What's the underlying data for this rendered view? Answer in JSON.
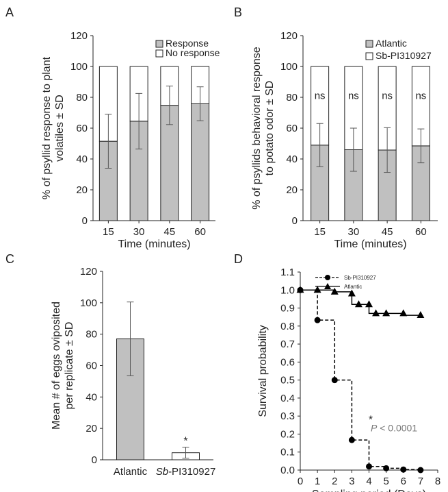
{
  "panel_labels": {
    "A": "A",
    "B": "B",
    "C": "C",
    "D": "D"
  },
  "colors": {
    "bar_fill": "#c0c0c0",
    "top_fill": "#ffffff",
    "axis": "#222222",
    "pvalue": "#777777"
  },
  "chart_data": [
    {
      "type": "bar",
      "stacked": true,
      "panel": "A",
      "categories": [
        "15",
        "30",
        "45",
        "60"
      ],
      "series": [
        {
          "name": "Response",
          "values": [
            51.5,
            64.5,
            74.8,
            75.8
          ],
          "sd": [
            17.5,
            18.0,
            12.5,
            11.0
          ],
          "color": "#c0c0c0"
        },
        {
          "name": "No response",
          "values": [
            48.5,
            35.5,
            25.2,
            24.2
          ],
          "color": "#ffffff"
        }
      ],
      "xlabel": "Time (minutes)",
      "ylabel": [
        "% of psyllid response to plant",
        "volatiles ± SD"
      ],
      "yticks": [
        "0",
        "20",
        "40",
        "60",
        "80",
        "100",
        "120"
      ],
      "ylim": [
        0,
        120
      ]
    },
    {
      "type": "bar",
      "stacked": true,
      "panel": "B",
      "categories": [
        "15",
        "30",
        "45",
        "60"
      ],
      "series": [
        {
          "name": "Atlantic",
          "values": [
            49.0,
            46.0,
            45.8,
            48.5
          ],
          "sd": [
            14.0,
            14.0,
            14.5,
            11.0
          ],
          "color": "#c0c0c0"
        },
        {
          "name": "Sb-PI310927",
          "values": [
            51.0,
            54.0,
            54.2,
            51.5
          ],
          "color": "#ffffff"
        }
      ],
      "annotations": [
        "ns",
        "ns",
        "ns",
        "ns"
      ],
      "xlabel": "Time (minutes)",
      "ylabel": [
        "% of psyllids behavioral response",
        "to potato odor ± SD"
      ],
      "yticks": [
        "0",
        "20",
        "40",
        "60",
        "80",
        "100",
        "120"
      ],
      "ylim": [
        0,
        120
      ]
    },
    {
      "type": "bar",
      "panel": "C",
      "categories": [
        "Atlantic",
        "Sb-PI310927"
      ],
      "category_parts": [
        {
          "italic": "",
          "rest": "Atlantic"
        },
        {
          "italic": "Sb",
          "rest": "-PI310927"
        }
      ],
      "values": [
        77.0,
        4.5
      ],
      "sd": [
        23.5,
        3.5
      ],
      "fills": [
        "#c0c0c0",
        "#ffffff"
      ],
      "significance": "*",
      "xlabel": "",
      "ylabel": [
        "Mean # of eggs oviposited",
        "per replicate ± SD"
      ],
      "yticks": [
        "0",
        "20",
        "40",
        "60",
        "80",
        "100",
        "120"
      ],
      "ylim": [
        0,
        120
      ]
    },
    {
      "type": "line",
      "step": true,
      "panel": "D",
      "series": [
        {
          "name": "Sb-PI310927",
          "marker": "circle",
          "dashed": true,
          "x": [
            0,
            1,
            2,
            3,
            4,
            5,
            6,
            7
          ],
          "y": [
            1.0,
            0.833,
            0.5,
            0.167,
            0.02,
            0.01,
            0.003,
            0.0
          ],
          "steps": [
            [
              0,
              1.0
            ],
            [
              1,
              1.0
            ],
            [
              1,
              0.833
            ],
            [
              2,
              0.833
            ],
            [
              2,
              0.5
            ],
            [
              3,
              0.5
            ],
            [
              3,
              0.167
            ],
            [
              4,
              0.167
            ],
            [
              4,
              0.02
            ],
            [
              5,
              0.02
            ],
            [
              5,
              0.01
            ],
            [
              6,
              0.01
            ],
            [
              6,
              0.003
            ],
            [
              7,
              0.003
            ],
            [
              7,
              0.0
            ]
          ]
        },
        {
          "name": "Atlantic",
          "marker": "triangle",
          "dashed": false,
          "x": [
            0,
            1,
            2,
            3,
            3.4,
            4,
            4.4,
            5,
            6,
            7
          ],
          "y": [
            1.0,
            1.0,
            0.99,
            0.98,
            0.92,
            0.92,
            0.87,
            0.87,
            0.87,
            0.86
          ],
          "steps": [
            [
              0,
              1.0
            ],
            [
              2,
              1.0
            ],
            [
              2,
              0.99
            ],
            [
              3,
              0.99
            ],
            [
              3,
              0.92
            ],
            [
              4,
              0.92
            ],
            [
              4,
              0.87
            ],
            [
              6,
              0.87
            ],
            [
              6,
              0.86
            ],
            [
              7,
              0.86
            ]
          ]
        }
      ],
      "significance": "*",
      "pvalue": {
        "italic": "P",
        "rest": " < 0.0001"
      },
      "xlabel": "Sampling period (Days)",
      "ylabel": "Survival probability",
      "xticks": [
        "0",
        "1",
        "2",
        "3",
        "4",
        "5",
        "6",
        "7",
        "8"
      ],
      "yticks": [
        "0.0",
        "0.1",
        "0.2",
        "0.3",
        "0.4",
        "0.5",
        "0.6",
        "0.7",
        "0.8",
        "0.9",
        "1.0",
        "1.1"
      ],
      "xlim": [
        0,
        8
      ],
      "ylim": [
        0,
        1.1
      ]
    }
  ]
}
